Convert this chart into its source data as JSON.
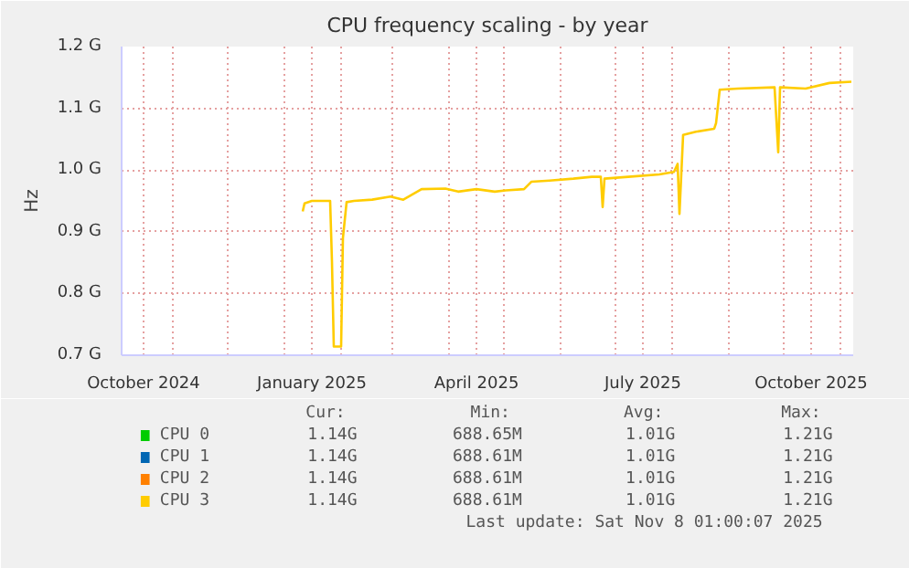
{
  "chart_data": {
    "type": "line",
    "title": "CPU frequency scaling - by year",
    "ylabel": "Hz",
    "x": [
      "2025-01-11",
      "2025-01-12",
      "2025-01-16",
      "2025-01-26",
      "2025-01-27",
      "2025-01-28",
      "2025-02-01",
      "2025-02-02",
      "2025-02-04",
      "2025-02-08",
      "2025-02-18",
      "2025-02-28",
      "2025-03-07",
      "2025-03-17",
      "2025-03-30",
      "2025-04-06",
      "2025-04-16",
      "2025-04-26",
      "2025-05-02",
      "2025-05-12",
      "2025-05-16",
      "2025-05-26",
      "2025-06-08",
      "2025-06-18",
      "2025-06-23",
      "2025-06-24",
      "2025-06-25",
      "2025-07-08",
      "2025-07-25",
      "2025-08-02",
      "2025-08-04",
      "2025-08-05",
      "2025-08-07",
      "2025-08-14",
      "2025-08-24",
      "2025-08-25",
      "2025-08-27",
      "2025-09-06",
      "2025-09-26",
      "2025-09-28",
      "2025-09-29",
      "2025-10-13",
      "2025-10-26",
      "2025-11-07"
    ],
    "series": [
      {
        "name": "CPU 0",
        "color": "#00cc00",
        "values": [
          null,
          null,
          null,
          null,
          null,
          null,
          null,
          null,
          null,
          null,
          null,
          null,
          null,
          null,
          null,
          null,
          null,
          null,
          null,
          null,
          null,
          null,
          null,
          null,
          null,
          null,
          null,
          null,
          null,
          null,
          null,
          null,
          null,
          null,
          null,
          null,
          null,
          null,
          null,
          null,
          null,
          null,
          null,
          null
        ]
      },
      {
        "name": "CPU 1",
        "color": "#0066b3",
        "values": [
          null,
          null,
          null,
          null,
          null,
          null,
          null,
          null,
          null,
          null,
          null,
          null,
          null,
          null,
          null,
          null,
          null,
          null,
          null,
          null,
          null,
          null,
          null,
          null,
          null,
          null,
          null,
          null,
          null,
          null,
          null,
          null,
          null,
          null,
          null,
          null,
          null,
          null,
          null,
          null,
          null,
          null,
          null,
          null
        ]
      },
      {
        "name": "CPU 2",
        "color": "#ff8000",
        "values": [
          null,
          null,
          null,
          null,
          null,
          null,
          null,
          null,
          null,
          null,
          null,
          null,
          null,
          null,
          null,
          null,
          null,
          null,
          null,
          null,
          null,
          null,
          null,
          null,
          null,
          null,
          null,
          null,
          null,
          null,
          null,
          null,
          null,
          null,
          null,
          null,
          null,
          null,
          null,
          null,
          null,
          null,
          null,
          null
        ]
      },
      {
        "name": "CPU 3",
        "color": "#ffcc00",
        "values": [
          0.933,
          0.946,
          0.95,
          0.95,
          0.852,
          0.714,
          0.714,
          0.89,
          0.948,
          0.95,
          0.952,
          0.957,
          0.952,
          0.969,
          0.97,
          0.965,
          0.969,
          0.965,
          0.967,
          0.969,
          0.981,
          0.983,
          0.986,
          0.989,
          0.989,
          0.94,
          0.986,
          0.989,
          0.993,
          0.997,
          1.01,
          0.929,
          1.057,
          1.062,
          1.067,
          1.076,
          1.13,
          1.132,
          1.134,
          1.029,
          1.134,
          1.132,
          1.141,
          1.143
        ]
      }
    ],
    "xlim": [
      "2024-10-04",
      "2025-11-08"
    ],
    "xticks": [
      {
        "value": "2024-10-16",
        "label": "October 2024"
      },
      {
        "value": "2024-11-01",
        "label": null
      },
      {
        "value": "2024-12-01",
        "label": null
      },
      {
        "value": "2025-01-01",
        "label": null
      },
      {
        "value": "2025-01-16",
        "label": "January 2025"
      },
      {
        "value": "2025-02-01",
        "label": null
      },
      {
        "value": "2025-03-01",
        "label": null
      },
      {
        "value": "2025-04-01",
        "label": null
      },
      {
        "value": "2025-04-16",
        "label": "April 2025"
      },
      {
        "value": "2025-05-01",
        "label": null
      },
      {
        "value": "2025-06-01",
        "label": null
      },
      {
        "value": "2025-07-01",
        "label": null
      },
      {
        "value": "2025-07-16",
        "label": "July 2025"
      },
      {
        "value": "2025-08-01",
        "label": null
      },
      {
        "value": "2025-09-01",
        "label": null
      },
      {
        "value": "2025-10-01",
        "label": null
      },
      {
        "value": "2025-10-16",
        "label": "October 2025"
      },
      {
        "value": "2025-11-01",
        "label": null
      }
    ],
    "ylim": [
      0.7,
      1.2
    ],
    "yticks": [
      {
        "value": 0.7,
        "label": "0.7 G"
      },
      {
        "value": 0.8,
        "label": "0.8 G"
      },
      {
        "value": 0.9,
        "label": "0.9 G"
      },
      {
        "value": 1.0,
        "label": "1.0 G"
      },
      {
        "value": 1.1,
        "label": "1.1 G"
      },
      {
        "value": 1.2,
        "label": "1.2 G"
      }
    ],
    "grid": true,
    "legend": "bottom",
    "marker": "none",
    "line_style": "solid",
    "annotations": [
      "Cur:",
      "Min:",
      "Avg:",
      "Max:",
      "1.14G",
      "688.65M",
      "1.01G",
      "1.21G",
      "1.14G",
      "688.61M",
      "1.01G",
      "1.21G",
      "1.14G",
      "688.61M",
      "1.01G",
      "1.21G",
      "1.14G",
      "688.61M",
      "1.01G",
      "1.21G",
      "Last update: Sat Nov  8 01:00:07 2025"
    ]
  }
}
